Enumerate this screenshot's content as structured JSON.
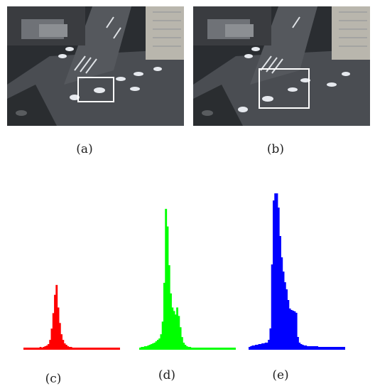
{
  "figure": {
    "panels": [
      {
        "id": "a",
        "label": "(a)"
      },
      {
        "id": "b",
        "label": "(b)"
      },
      {
        "id": "c",
        "label": "(c)",
        "color": "#ff0000"
      },
      {
        "id": "d",
        "label": "(d)",
        "color": "#00ff00"
      },
      {
        "id": "e",
        "label": "(e)",
        "color": "#0000ff"
      }
    ],
    "photo": {
      "road_color": "#4a4d52",
      "building_color": "#b9b6ad",
      "selection_box_color": "#ffffff"
    }
  },
  "chart_data": [
    {
      "type": "area",
      "title": "",
      "xlabel": "",
      "ylabel": "",
      "series": [
        {
          "values": [
            2,
            2,
            3,
            2,
            3,
            2,
            3,
            3,
            2,
            3,
            4,
            3,
            4,
            5,
            6,
            8,
            14,
            30,
            52,
            78,
            92,
            60,
            38,
            22,
            14,
            9,
            7,
            5,
            4,
            4,
            3,
            3,
            3,
            2,
            3,
            3,
            2,
            3,
            2,
            2,
            3,
            2,
            3,
            2,
            3,
            2,
            2,
            3,
            2,
            2,
            3,
            2,
            2,
            2,
            3,
            2,
            3,
            2,
            2,
            2
          ]
        }
      ]
    },
    {
      "type": "area",
      "title": "",
      "xlabel": "",
      "ylabel": "",
      "series": [
        {
          "values": [
            3,
            4,
            4,
            5,
            5,
            6,
            7,
            8,
            9,
            10,
            12,
            14,
            16,
            22,
            40,
            95,
            200,
            175,
            120,
            80,
            60,
            55,
            50,
            60,
            48,
            32,
            18,
            10,
            7,
            5,
            4,
            4,
            3,
            3,
            3,
            3,
            3,
            2,
            3,
            3,
            2,
            3,
            3,
            2,
            3,
            2,
            3,
            2,
            3,
            2,
            3,
            2,
            3,
            3,
            2,
            2,
            3,
            2,
            2,
            2
          ]
        }
      ]
    },
    {
      "type": "area",
      "title": "",
      "xlabel": "",
      "ylabel": "",
      "series": [
        {
          "values": [
            4,
            5,
            6,
            6,
            7,
            7,
            8,
            8,
            9,
            9,
            10,
            10,
            14,
            30,
            120,
            210,
            220,
            220,
            200,
            160,
            130,
            110,
            95,
            85,
            70,
            58,
            56,
            55,
            54,
            52,
            18,
            10,
            8,
            7,
            6,
            6,
            5,
            5,
            5,
            5,
            5,
            5,
            5,
            4,
            4,
            4,
            4,
            4,
            4,
            4,
            4,
            4,
            4,
            4,
            4,
            4,
            4,
            4,
            4,
            4
          ]
        }
      ]
    }
  ]
}
